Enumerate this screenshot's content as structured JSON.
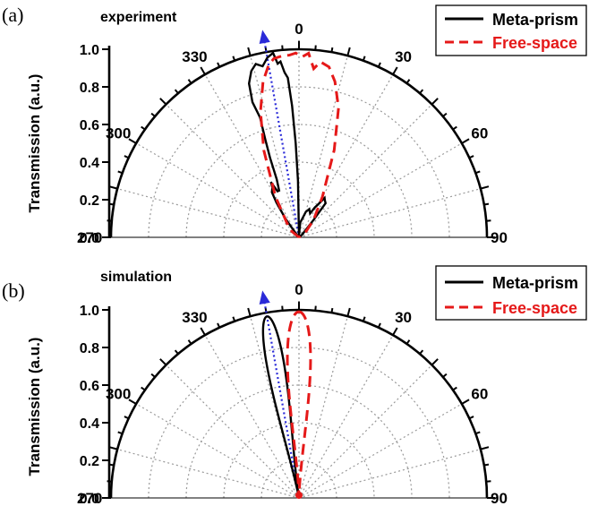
{
  "chart_data": [
    {
      "type": "polar-line",
      "panel_label": "(a)",
      "title": "experiment",
      "ylabel": "Transmission (a.u.)",
      "radial_range": [
        0,
        1.0
      ],
      "radial_ticks": [
        "0.0",
        "0.2",
        "0.4",
        "0.6",
        "0.8",
        "1.0"
      ],
      "angle_ticks": [
        "270",
        "300",
        "330",
        "0",
        "30",
        "60",
        "90"
      ],
      "angular_range_deg": [
        -90,
        90
      ],
      "grid": true,
      "legend_position": "top-right",
      "legend": [
        "Meta-prism",
        "Free-space"
      ],
      "marker_arrow_angle_deg": -10,
      "series": [
        {
          "name": "Meta-prism",
          "color": "#000000",
          "style": "solid",
          "points": [
            [
              -90,
              0
            ],
            [
              -70,
              0
            ],
            [
              -50,
              0
            ],
            [
              -40,
              0.02
            ],
            [
              -36,
              0.12
            ],
            [
              -33,
              0.22
            ],
            [
              -31,
              0.28
            ],
            [
              -28,
              0.3
            ],
            [
              -27,
              0.33
            ],
            [
              -25,
              0.27
            ],
            [
              -23,
              0.27
            ],
            [
              -21,
              0.33
            ],
            [
              -20,
              0.45
            ],
            [
              -19,
              0.55
            ],
            [
              -18,
              0.67
            ],
            [
              -19,
              0.76
            ],
            [
              -18,
              0.86
            ],
            [
              -16,
              0.92
            ],
            [
              -14,
              0.95
            ],
            [
              -12,
              0.93
            ],
            [
              -10,
              0.97
            ],
            [
              -8,
              0.99
            ],
            [
              -7,
              0.93
            ],
            [
              -6,
              0.94
            ],
            [
              -5,
              0.88
            ],
            [
              -4,
              0.85
            ],
            [
              -3,
              0.7
            ],
            [
              -2,
              0.5
            ],
            [
              -1,
              0.3
            ],
            [
              0,
              0
            ],
            [
              2,
              0.02
            ],
            [
              5,
              0.08
            ],
            [
              10,
              0.1
            ],
            [
              15,
              0.14
            ],
            [
              20,
              0.16
            ],
            [
              25,
              0.14
            ],
            [
              28,
              0.18
            ],
            [
              30,
              0.2
            ],
            [
              33,
              0.25
            ],
            [
              35,
              0.24
            ],
            [
              38,
              0.23
            ],
            [
              40,
              0.12
            ],
            [
              50,
              0.02
            ],
            [
              90,
              0
            ]
          ]
        },
        {
          "name": "Free-space",
          "color": "#e51919",
          "style": "dashed",
          "points": [
            [
              -90,
              0
            ],
            [
              -50,
              0.05
            ],
            [
              -40,
              0.1
            ],
            [
              -30,
              0.25
            ],
            [
              -22,
              0.5
            ],
            [
              -17,
              0.7
            ],
            [
              -13,
              0.85
            ],
            [
              -10,
              0.93
            ],
            [
              -8,
              0.96
            ],
            [
              -5,
              0.97
            ],
            [
              -3,
              0.97
            ],
            [
              -1,
              0.98
            ],
            [
              1,
              0.96
            ],
            [
              3,
              0.98
            ],
            [
              5,
              0.9
            ],
            [
              7,
              0.94
            ],
            [
              10,
              0.92
            ],
            [
              13,
              0.85
            ],
            [
              17,
              0.72
            ],
            [
              22,
              0.5
            ],
            [
              30,
              0.25
            ],
            [
              40,
              0.12
            ],
            [
              50,
              0.05
            ],
            [
              90,
              0
            ]
          ]
        }
      ]
    },
    {
      "type": "polar-line",
      "panel_label": "(b)",
      "title": "simulation",
      "ylabel": "Transmission (a.u.)",
      "radial_range": [
        0,
        1.0
      ],
      "radial_ticks": [
        "0.0",
        "0.2",
        "0.4",
        "0.6",
        "0.8",
        "1.0"
      ],
      "angle_ticks": [
        "270",
        "300",
        "330",
        "0",
        "30",
        "60",
        "90"
      ],
      "angular_range_deg": [
        -90,
        90
      ],
      "grid": true,
      "legend_position": "top-right",
      "legend": [
        "Meta-prism",
        "Free-space"
      ],
      "marker_arrow_angle_deg": -10,
      "series": [
        {
          "name": "Meta-prism",
          "color": "#000000",
          "style": "solid",
          "shape": {
            "center_deg": -10,
            "peak": 0.98,
            "width": 0.045
          }
        },
        {
          "name": "Free-space",
          "color": "#e51919",
          "style": "dashed",
          "shape": {
            "center_deg": 0,
            "peak": 0.99,
            "width": 0.06
          }
        }
      ]
    }
  ]
}
